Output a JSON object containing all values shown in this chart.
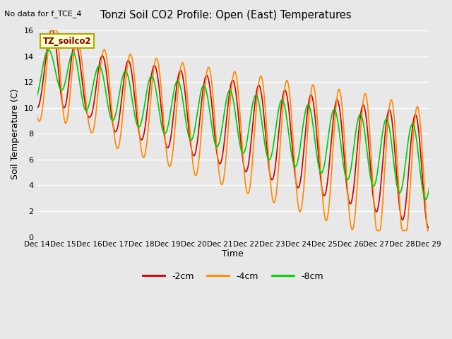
{
  "title": "Tonzi Soil CO2 Profile: Open (East) Temperatures",
  "subtitle": "No data for f_TCE_4",
  "ylabel": "Soil Temperature (C)",
  "xlabel": "Time",
  "box_label": "TZ_soilco2",
  "ylim": [
    0,
    16
  ],
  "yticks": [
    0,
    2,
    4,
    6,
    8,
    10,
    12,
    14,
    16
  ],
  "bg_color": "#e8e8e8",
  "legend_entries": [
    "-2cm",
    "-4cm",
    "-8cm"
  ],
  "line_colors": [
    "#cc0000",
    "#ff8800",
    "#00cc00"
  ],
  "xtick_labels": [
    "Dec 14",
    "Dec 15",
    "Dec 16",
    "Dec 17",
    "Dec 18",
    "Dec 19",
    "Dec 20",
    "Dec 21",
    "Dec 22",
    "Dec 23",
    "Dec 24",
    "Dec 25",
    "Dec 26",
    "Dec 27",
    "Dec 28",
    "Dec 29"
  ],
  "n_points": 480,
  "days": 16
}
